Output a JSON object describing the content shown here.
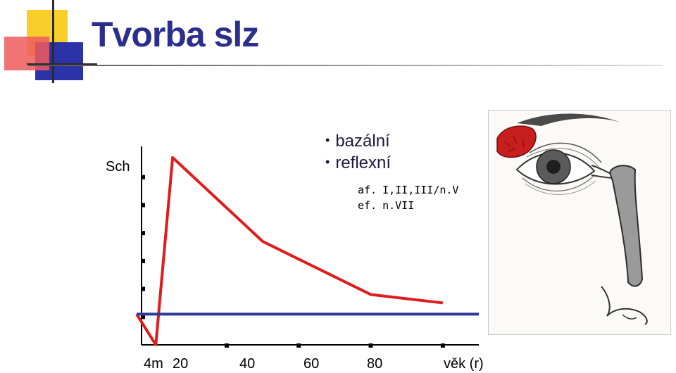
{
  "slide": {
    "title": "Tvorba slz",
    "bullets": [
      "bazální",
      "reflexní"
    ],
    "notes": {
      "af_label": "af.",
      "af_value": "I,II,III/n.V",
      "ef_label": "ef.",
      "ef_value": "n.VII"
    }
  },
  "colors": {
    "title": "#2b2e8c",
    "reflex_line": "#e01b1b",
    "basal_line": "#303a96",
    "axis": "#000000"
  },
  "illustration": {
    "name": "lacrimal-system-eye-drawing"
  },
  "chart_data": {
    "type": "line",
    "ylabel": "Sch",
    "xlabel": "věk (r)",
    "x_tick_labels": [
      "4m",
      "20",
      "40",
      "60",
      "80"
    ],
    "x_ticks": [
      0.33,
      20,
      40,
      60,
      80
    ],
    "xlim": [
      -5,
      90
    ],
    "ylim": [
      0,
      7
    ],
    "y_ticks": [
      1,
      2,
      3,
      4,
      5,
      6
    ],
    "grid": false,
    "series": [
      {
        "x": [
          -5,
          0.33,
          5,
          30,
          60,
          80
        ],
        "y": [
          1.1,
          0,
          6.7,
          3.7,
          1.8,
          1.5
        ]
      },
      {
        "x": [
          -5,
          90
        ],
        "y": [
          1.1,
          1.1
        ]
      }
    ]
  }
}
